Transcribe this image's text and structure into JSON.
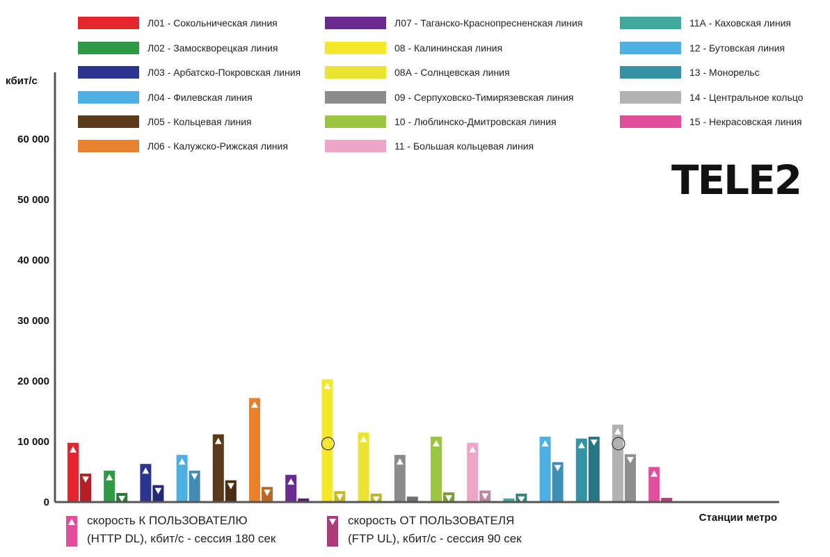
{
  "chart_data": {
    "type": "bar",
    "ylabel": "кбит/с",
    "xlabel": "Станции метро",
    "ylim": [
      0,
      65000
    ],
    "y_ticks": [
      {
        "value": 0,
        "label": "0"
      },
      {
        "value": 10000,
        "label": "10 000"
      },
      {
        "value": 20000,
        "label": "20 000"
      },
      {
        "value": 30000,
        "label": "30 000"
      },
      {
        "value": 40000,
        "label": "40 000"
      },
      {
        "value": 50000,
        "label": "50 000"
      },
      {
        "value": 60000,
        "label": "60 000"
      }
    ],
    "grid": false,
    "legend_position": "top",
    "series": [
      {
        "name": "скорость К ПОЛЬЗОВАТЕЛЮ (HTTP DL), кбит/с - сессия 180 сек",
        "symbol": "▲"
      },
      {
        "name": "скорость ОТ ПОЛЬЗОВАТЕЛЯ (FTP UL), кбит/с - сессия 90 сек",
        "symbol": "▼"
      }
    ],
    "lines": [
      {
        "label": "Л01 - Сокольническая линия",
        "color": "#e3262e",
        "download": 9800,
        "upload": 4700
      },
      {
        "label": "Л02 - Замоскворецкая линия",
        "color": "#2e9a45",
        "download": 5200,
        "upload": 1500
      },
      {
        "label": "Л03 - Арбатско-Покровская линия",
        "color": "#2a3591",
        "download": 6300,
        "upload": 2800
      },
      {
        "label": "Л04 - Филевская линия",
        "color": "#4faee2",
        "download": 7800,
        "upload": 5200
      },
      {
        "label": "Л05 - Кольцевая линия",
        "color": "#5b3a1c",
        "download": 11200,
        "upload": 3600
      },
      {
        "label": "Л06 - Калужско-Рижская линия",
        "color": "#e8812e",
        "download": 17200,
        "upload": 2500
      },
      {
        "label": "Л07 - Таганско-Краснопресненская линия",
        "color": "#6a2b91",
        "download": 4500,
        "upload": 600
      },
      {
        "label": "08 - Калининская линия",
        "color": "#f5e82a",
        "download": 20300,
        "upload": 1800
      },
      {
        "label": "08А - Солнцевская линия",
        "color": "#e9e532",
        "download": 11500,
        "upload": 1400
      },
      {
        "label": "09 - Серпуховско-Тимирязевская линия",
        "color": "#8c8c8c",
        "download": 7800,
        "upload": 900
      },
      {
        "label": "10 - Люблинско-Дмитровская линия",
        "color": "#9bc640",
        "download": 10800,
        "upload": 1600
      },
      {
        "label": "11 - Большая кольцевая линия",
        "color": "#eea5c9",
        "download": 9800,
        "upload": 1900
      },
      {
        "label": "11А - Каховская линия",
        "color": "#3fa9a0",
        "download": 600,
        "upload": 1400
      },
      {
        "label": "12 - Бутовская линия",
        "color": "#4eb1e3",
        "download": 10800,
        "upload": 6600
      },
      {
        "label": "13 - Монорельс",
        "color": "#3592a6",
        "download": 10500,
        "upload": 10800
      },
      {
        "label": "14 - Центральное кольцо",
        "color": "#b2b2b2",
        "download": 12800,
        "upload": 7900
      },
      {
        "label": "15 - Некрасовская линия",
        "color": "#e34d9c",
        "download": 5800,
        "upload": 700
      }
    ]
  },
  "logo": {
    "text": "TELE2"
  }
}
